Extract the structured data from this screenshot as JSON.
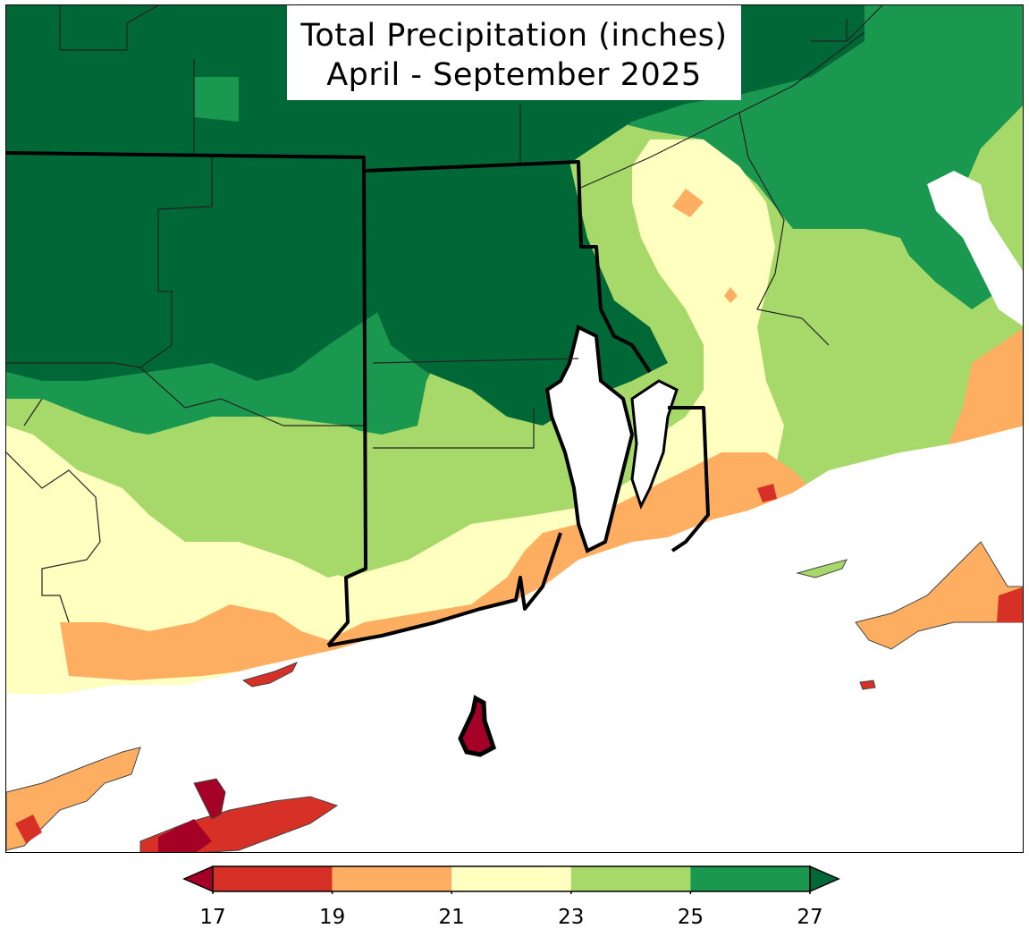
{
  "title": {
    "line1": "Total Precipitation (inches)",
    "line2": "April - September 2025"
  },
  "legend": {
    "ticks": [
      "17",
      "19",
      "21",
      "23",
      "25",
      "27"
    ],
    "colors": [
      "#d73027",
      "#fdae61",
      "#ffffbf",
      "#a6d96a",
      "#1a9850",
      "#006837"
    ],
    "under_color": "#a50026",
    "over_color": "#006837"
  },
  "palette": {
    "very_low": "#a50026",
    "low": "#d73027",
    "below": "#fdae61",
    "mid": "#ffffbf",
    "above": "#a6d96a",
    "high": "#1a9850",
    "very_high": "#006837"
  }
}
